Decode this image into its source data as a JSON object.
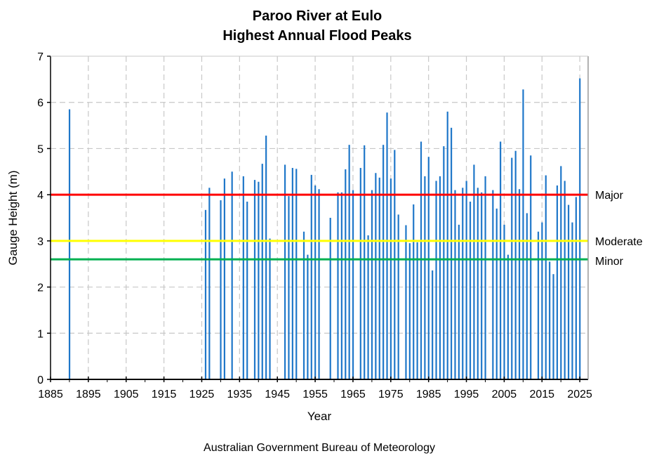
{
  "chart_data": {
    "type": "bar",
    "title": [
      "Paroo River at Eulo",
      "Highest Annual Flood Peaks"
    ],
    "xlabel": "Year",
    "ylabel": "Gauge Height (m)",
    "footer": "Australian Government Bureau of Meteorology",
    "xlim": [
      1885,
      2027.2
    ],
    "ylim": [
      0,
      7
    ],
    "xticks": [
      1885,
      1895,
      1905,
      1915,
      1925,
      1935,
      1945,
      1955,
      1965,
      1975,
      1985,
      1995,
      2005,
      2015,
      2025
    ],
    "yticks": [
      0,
      1,
      2,
      3,
      4,
      5,
      6,
      7
    ],
    "grid": true,
    "bar_color": "#1f77c9",
    "thresholds": [
      {
        "name": "Major",
        "value": 4.0,
        "color": "#ff0000"
      },
      {
        "name": "Moderate",
        "value": 3.0,
        "color": "#ffff00"
      },
      {
        "name": "Minor",
        "value": 2.6,
        "color": "#00b050"
      }
    ],
    "x": [
      1890,
      1926,
      1927,
      1930,
      1931,
      1933,
      1936,
      1937,
      1939,
      1940,
      1941,
      1942,
      1943,
      1947,
      1948,
      1949,
      1950,
      1952,
      1953,
      1954,
      1955,
      1956,
      1959,
      1961,
      1962,
      1963,
      1964,
      1965,
      1967,
      1968,
      1969,
      1970,
      1971,
      1972,
      1973,
      1974,
      1975,
      1976,
      1977,
      1979,
      1980,
      1981,
      1982,
      1983,
      1984,
      1985,
      1986,
      1987,
      1988,
      1989,
      1990,
      1991,
      1992,
      1993,
      1994,
      1995,
      1996,
      1997,
      1998,
      1999,
      2000,
      2002,
      2003,
      2004,
      2005,
      2006,
      2007,
      2008,
      2009,
      2010,
      2011,
      2012,
      2014,
      2015,
      2016,
      2017,
      2018,
      2019,
      2020,
      2021,
      2022,
      2023,
      2024,
      2025
    ],
    "values": [
      5.85,
      3.67,
      4.15,
      3.88,
      4.35,
      4.5,
      4.4,
      3.85,
      4.32,
      4.28,
      4.67,
      5.28,
      3.05,
      4.65,
      3.97,
      4.58,
      4.56,
      3.2,
      2.7,
      4.43,
      4.2,
      4.12,
      3.5,
      4.05,
      4.05,
      4.55,
      5.08,
      4.1,
      4.58,
      5.07,
      3.12,
      4.1,
      4.47,
      4.37,
      5.08,
      5.78,
      4.35,
      4.97,
      3.57,
      3.34,
      2.95,
      3.79,
      2.97,
      5.15,
      4.4,
      4.82,
      2.36,
      4.3,
      4.4,
      5.05,
      5.8,
      5.45,
      4.1,
      3.35,
      4.15,
      4.3,
      3.85,
      4.65,
      4.15,
      4.05,
      4.4,
      4.1,
      3.7,
      5.15,
      3.35,
      2.7,
      4.8,
      4.95,
      4.12,
      6.28,
      3.6,
      4.85,
      3.2,
      3.4,
      4.42,
      2.55,
      2.28,
      4.2,
      4.62,
      4.3,
      3.78,
      3.4,
      3.95,
      6.52
    ]
  }
}
